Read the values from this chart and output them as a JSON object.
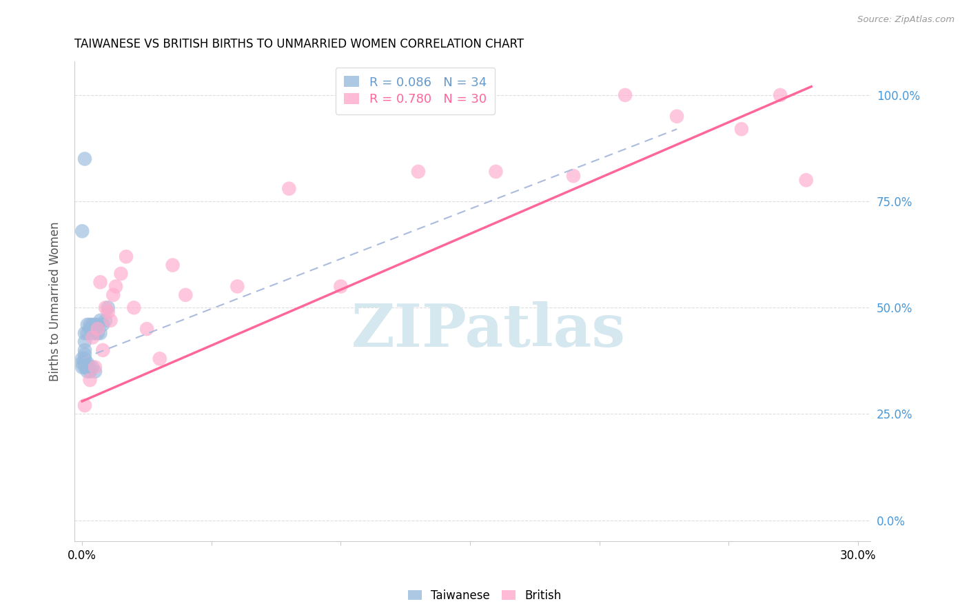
{
  "title": "TAIWANESE VS BRITISH BIRTHS TO UNMARRIED WOMEN CORRELATION CHART",
  "source": "Source: ZipAtlas.com",
  "ylabel": "Births to Unmarried Women",
  "legend_label1": "Taiwanese",
  "legend_label2": "British",
  "taiwanese_color": "#99BBDD",
  "british_color": "#FFAACC",
  "taiwanese_line_color": "#AABBDD",
  "british_line_color": "#FF6699",
  "watermark": "ZIPatlas",
  "watermark_color": "#D5E8F0",
  "xlim": [
    -0.003,
    0.305
  ],
  "ylim": [
    -0.05,
    1.08
  ],
  "tw_R": 0.086,
  "tw_N": 34,
  "br_R": 0.78,
  "br_N": 30,
  "tw_x": [
    0.0,
    0.0,
    0.0,
    0.001,
    0.001,
    0.001,
    0.001,
    0.001,
    0.001,
    0.001,
    0.001,
    0.002,
    0.002,
    0.002,
    0.002,
    0.002,
    0.003,
    0.003,
    0.003,
    0.003,
    0.004,
    0.004,
    0.004,
    0.005,
    0.005,
    0.005,
    0.006,
    0.006,
    0.007,
    0.007,
    0.008,
    0.009,
    0.01,
    0.0
  ],
  "tw_y": [
    0.36,
    0.37,
    0.38,
    0.36,
    0.37,
    0.38,
    0.39,
    0.4,
    0.42,
    0.44,
    0.85,
    0.35,
    0.36,
    0.37,
    0.44,
    0.46,
    0.35,
    0.36,
    0.45,
    0.46,
    0.36,
    0.44,
    0.46,
    0.35,
    0.44,
    0.46,
    0.44,
    0.46,
    0.44,
    0.47,
    0.46,
    0.47,
    0.5,
    0.68
  ],
  "br_x": [
    0.001,
    0.003,
    0.004,
    0.005,
    0.006,
    0.007,
    0.008,
    0.009,
    0.01,
    0.011,
    0.012,
    0.013,
    0.015,
    0.017,
    0.02,
    0.025,
    0.03,
    0.035,
    0.04,
    0.06,
    0.08,
    0.1,
    0.13,
    0.16,
    0.19,
    0.21,
    0.23,
    0.255,
    0.27,
    0.28
  ],
  "br_y": [
    0.27,
    0.33,
    0.43,
    0.36,
    0.45,
    0.56,
    0.4,
    0.5,
    0.49,
    0.47,
    0.53,
    0.55,
    0.58,
    0.62,
    0.5,
    0.45,
    0.38,
    0.6,
    0.53,
    0.55,
    0.78,
    0.55,
    0.82,
    0.82,
    0.81,
    1.0,
    0.95,
    0.92,
    1.0,
    0.8
  ],
  "tw_line_x": [
    0.0,
    0.23
  ],
  "tw_line_y": [
    0.38,
    0.92
  ],
  "br_line_x": [
    0.0,
    0.282
  ],
  "br_line_y": [
    0.28,
    1.02
  ],
  "x_ticks": [
    0.0,
    0.05,
    0.1,
    0.15,
    0.2,
    0.25,
    0.3
  ],
  "y_ticks": [
    0.0,
    0.25,
    0.5,
    0.75,
    1.0
  ],
  "y_right_labels": [
    "0.0%",
    "25.0%",
    "50.0%",
    "75.0%",
    "100.0%"
  ],
  "grid_color": "#DDDDDD",
  "spine_color": "#CCCCCC"
}
